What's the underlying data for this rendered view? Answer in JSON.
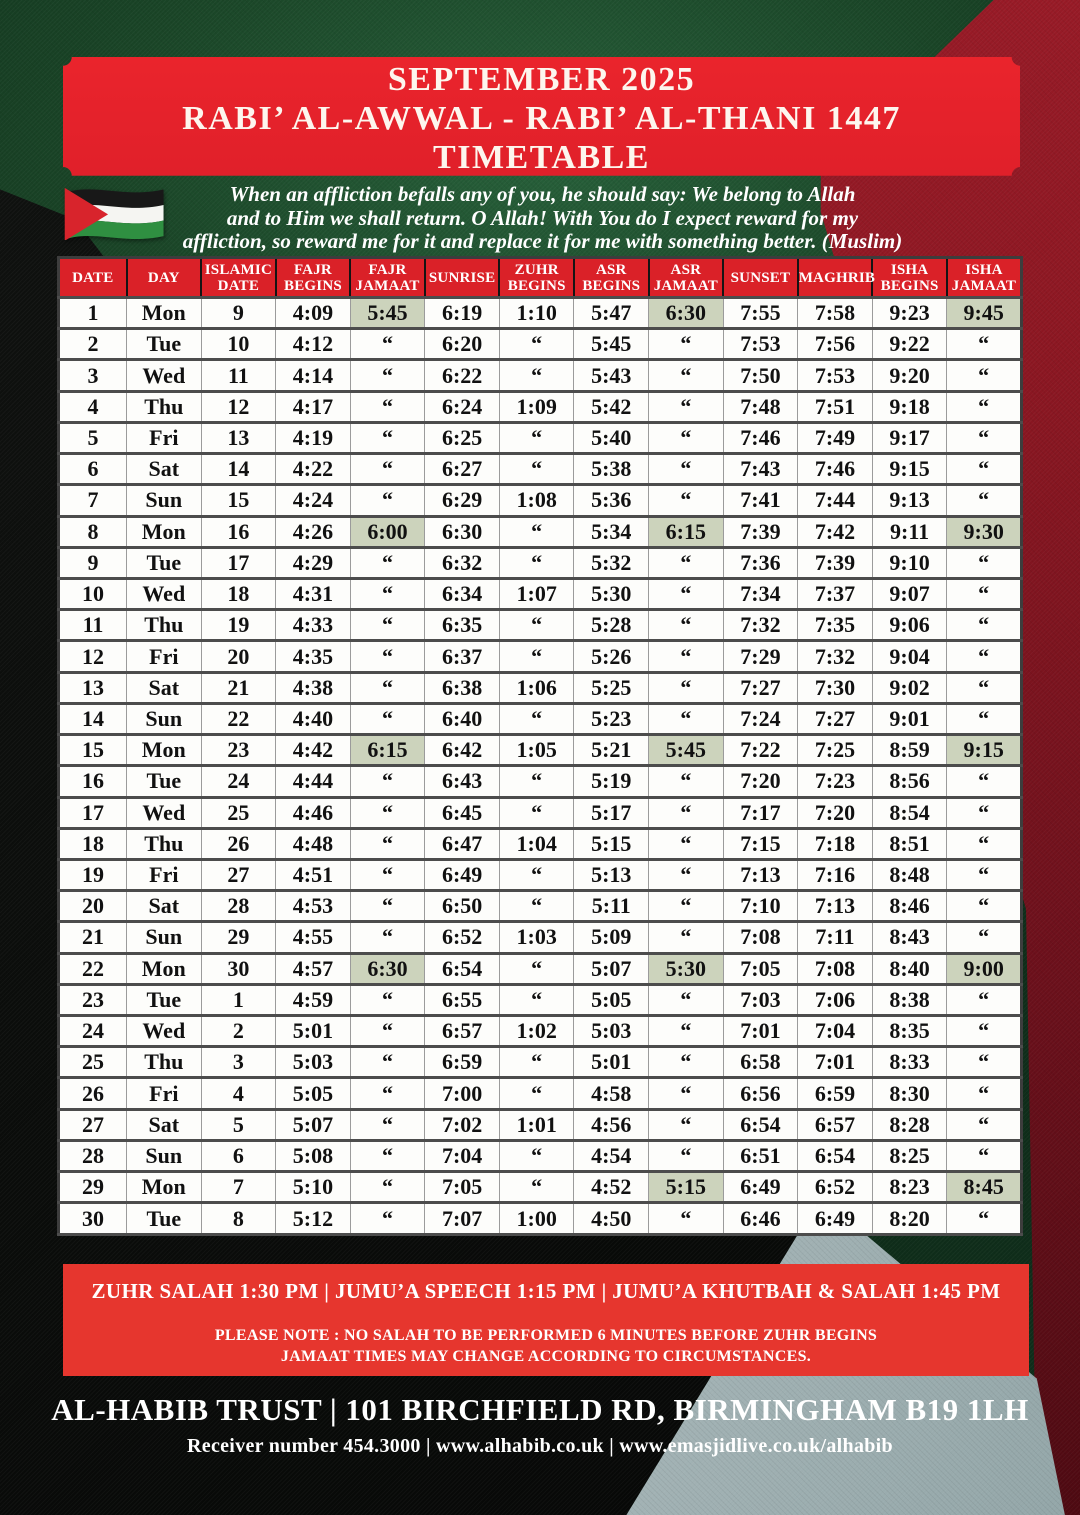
{
  "banner": {
    "line1": "SEPTEMBER 2025",
    "line2": "RABI’ AL-AWWAL  -  RABI’ AL-THANI 1447",
    "line3": "TIMETABLE"
  },
  "quote": {
    "line1": "When an affliction befalls any of you, he should say: We belong to Allah",
    "line2": "and to Him we shall return. O Allah! With You do I expect reward for my",
    "line3": "affliction, so reward me for it and replace it for me with something better. (Muslim)"
  },
  "flag": {
    "icon": "palestine-flag-icon"
  },
  "table": {
    "columns": [
      "DATE",
      "DAY",
      "ISLAMIC\nDATE",
      "FAJR\nBEGINS",
      "FAJR\nJAMAAT",
      "SUNRISE",
      "ZUHR\nBEGINS",
      "ASR\nBEGINS",
      "ASR\nJAMAAT",
      "SUNSET",
      "MAGHRIB",
      "ISHA\nBEGINS",
      "ISHA\nJAMAAT"
    ],
    "ditto_mark": "“",
    "highlight_color": "#ccd3bc",
    "highlighted": {
      "0": [
        4,
        8,
        12
      ],
      "7": [
        4,
        8,
        12
      ],
      "14": [
        4,
        8,
        12
      ],
      "21": [
        4,
        8,
        12
      ],
      "28": [
        8,
        12
      ]
    },
    "rows": [
      [
        "1",
        "Mon",
        "9",
        "4:09",
        "5:45",
        "6:19",
        "1:10",
        "5:47",
        "6:30",
        "7:55",
        "7:58",
        "9:23",
        "9:45"
      ],
      [
        "2",
        "Tue",
        "10",
        "4:12",
        "“",
        "6:20",
        "“",
        "5:45",
        "“",
        "7:53",
        "7:56",
        "9:22",
        "“"
      ],
      [
        "3",
        "Wed",
        "11",
        "4:14",
        "“",
        "6:22",
        "“",
        "5:43",
        "“",
        "7:50",
        "7:53",
        "9:20",
        "“"
      ],
      [
        "4",
        "Thu",
        "12",
        "4:17",
        "“",
        "6:24",
        "1:09",
        "5:42",
        "“",
        "7:48",
        "7:51",
        "9:18",
        "“"
      ],
      [
        "5",
        "Fri",
        "13",
        "4:19",
        "“",
        "6:25",
        "“",
        "5:40",
        "“",
        "7:46",
        "7:49",
        "9:17",
        "“"
      ],
      [
        "6",
        "Sat",
        "14",
        "4:22",
        "“",
        "6:27",
        "“",
        "5:38",
        "“",
        "7:43",
        "7:46",
        "9:15",
        "“"
      ],
      [
        "7",
        "Sun",
        "15",
        "4:24",
        "“",
        "6:29",
        "1:08",
        "5:36",
        "“",
        "7:41",
        "7:44",
        "9:13",
        "“"
      ],
      [
        "8",
        "Mon",
        "16",
        "4:26",
        "6:00",
        "6:30",
        "“",
        "5:34",
        "6:15",
        "7:39",
        "7:42",
        "9:11",
        "9:30"
      ],
      [
        "9",
        "Tue",
        "17",
        "4:29",
        "“",
        "6:32",
        "“",
        "5:32",
        "“",
        "7:36",
        "7:39",
        "9:10",
        "“"
      ],
      [
        "10",
        "Wed",
        "18",
        "4:31",
        "“",
        "6:34",
        "1:07",
        "5:30",
        "“",
        "7:34",
        "7:37",
        "9:07",
        "“"
      ],
      [
        "11",
        "Thu",
        "19",
        "4:33",
        "“",
        "6:35",
        "“",
        "5:28",
        "“",
        "7:32",
        "7:35",
        "9:06",
        "“"
      ],
      [
        "12",
        "Fri",
        "20",
        "4:35",
        "“",
        "6:37",
        "“",
        "5:26",
        "“",
        "7:29",
        "7:32",
        "9:04",
        "“"
      ],
      [
        "13",
        "Sat",
        "21",
        "4:38",
        "“",
        "6:38",
        "1:06",
        "5:25",
        "“",
        "7:27",
        "7:30",
        "9:02",
        "“"
      ],
      [
        "14",
        "Sun",
        "22",
        "4:40",
        "“",
        "6:40",
        "“",
        "5:23",
        "“",
        "7:24",
        "7:27",
        "9:01",
        "“"
      ],
      [
        "15",
        "Mon",
        "23",
        "4:42",
        "6:15",
        "6:42",
        "1:05",
        "5:21",
        "5:45",
        "7:22",
        "7:25",
        "8:59",
        "9:15"
      ],
      [
        "16",
        "Tue",
        "24",
        "4:44",
        "“",
        "6:43",
        "“",
        "5:19",
        "“",
        "7:20",
        "7:23",
        "8:56",
        "“"
      ],
      [
        "17",
        "Wed",
        "25",
        "4:46",
        "“",
        "6:45",
        "“",
        "5:17",
        "“",
        "7:17",
        "7:20",
        "8:54",
        "“"
      ],
      [
        "18",
        "Thu",
        "26",
        "4:48",
        "“",
        "6:47",
        "1:04",
        "5:15",
        "“",
        "7:15",
        "7:18",
        "8:51",
        "“"
      ],
      [
        "19",
        "Fri",
        "27",
        "4:51",
        "“",
        "6:49",
        "“",
        "5:13",
        "“",
        "7:13",
        "7:16",
        "8:48",
        "“"
      ],
      [
        "20",
        "Sat",
        "28",
        "4:53",
        "“",
        "6:50",
        "“",
        "5:11",
        "“",
        "7:10",
        "7:13",
        "8:46",
        "“"
      ],
      [
        "21",
        "Sun",
        "29",
        "4:55",
        "“",
        "6:52",
        "1:03",
        "5:09",
        "“",
        "7:08",
        "7:11",
        "8:43",
        "“"
      ],
      [
        "22",
        "Mon",
        "30",
        "4:57",
        "6:30",
        "6:54",
        "“",
        "5:07",
        "5:30",
        "7:05",
        "7:08",
        "8:40",
        "9:00"
      ],
      [
        "23",
        "Tue",
        "1",
        "4:59",
        "“",
        "6:55",
        "“",
        "5:05",
        "“",
        "7:03",
        "7:06",
        "8:38",
        "“"
      ],
      [
        "24",
        "Wed",
        "2",
        "5:01",
        "“",
        "6:57",
        "1:02",
        "5:03",
        "“",
        "7:01",
        "7:04",
        "8:35",
        "“"
      ],
      [
        "25",
        "Thu",
        "3",
        "5:03",
        "“",
        "6:59",
        "“",
        "5:01",
        "“",
        "6:58",
        "7:01",
        "8:33",
        "“"
      ],
      [
        "26",
        "Fri",
        "4",
        "5:05",
        "“",
        "7:00",
        "“",
        "4:58",
        "“",
        "6:56",
        "6:59",
        "8:30",
        "“"
      ],
      [
        "27",
        "Sat",
        "5",
        "5:07",
        "“",
        "7:02",
        "1:01",
        "4:56",
        "“",
        "6:54",
        "6:57",
        "8:28",
        "“"
      ],
      [
        "28",
        "Sun",
        "6",
        "5:08",
        "“",
        "7:04",
        "“",
        "4:54",
        "“",
        "6:51",
        "6:54",
        "8:25",
        "“"
      ],
      [
        "29",
        "Mon",
        "7",
        "5:10",
        "“",
        "7:05",
        "“",
        "4:52",
        "5:15",
        "6:49",
        "6:52",
        "8:23",
        "8:45"
      ],
      [
        "30",
        "Tue",
        "8",
        "5:12",
        "“",
        "7:07",
        "1:00",
        "4:50",
        "“",
        "6:46",
        "6:49",
        "8:20",
        "“"
      ]
    ]
  },
  "notes": {
    "line1": "ZUHR SALAH 1:30 PM | JUMU’A SPEECH 1:15 PM | JUMU’A KHUTBAH & SALAH 1:45 PM",
    "line2": "PLEASE NOTE : NO SALAH TO BE PERFORMED 6 MINUTES BEFORE ZUHR BEGINS",
    "line3": "JAMAAT TIMES MAY CHANGE ACCORDING TO CIRCUMSTANCES."
  },
  "footer": {
    "line1": "AL-HABIB TRUST | 101 BIRCHFIELD RD, BIRMINGHAM B19 1LH",
    "line2": "Receiver number 454.3000 | www.alhabib.co.uk | www.emasjidlive.co.uk/alhabib"
  },
  "colors": {
    "banner_red": "#e5232b",
    "table_header_red": "#da2128",
    "note_box_red": "#e6362e",
    "highlight_green": "#ccd3bc",
    "background_green": "#1a4527",
    "background_dark_red": "#8c1722",
    "background_black": "#0a0c0a",
    "background_gray": "#b3c0c2"
  }
}
